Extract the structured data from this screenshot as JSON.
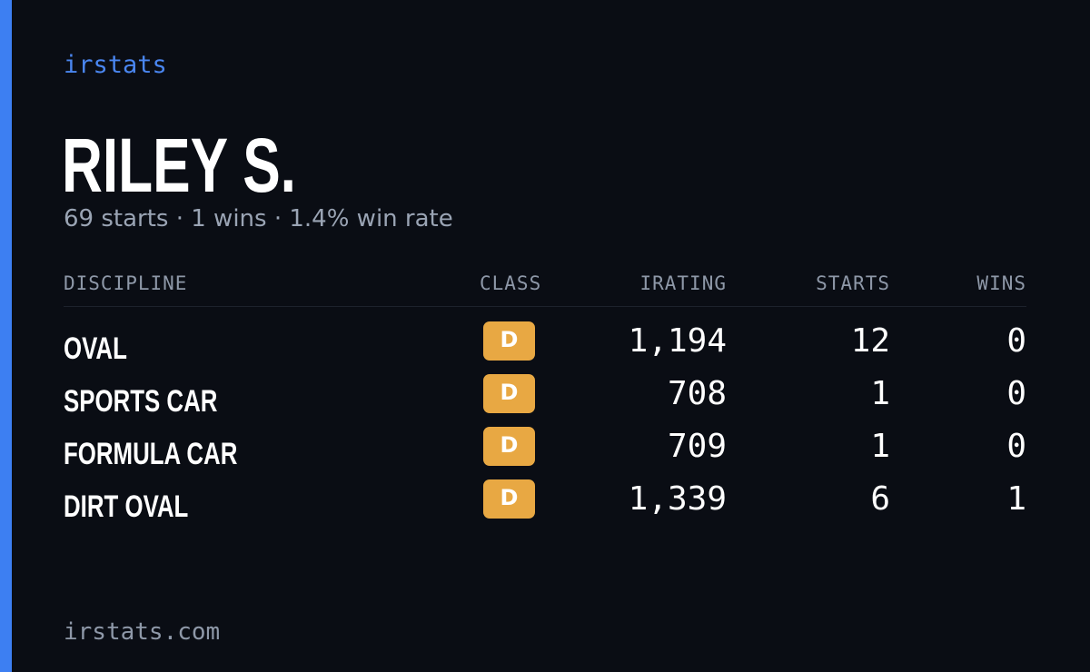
{
  "brand": "irstats",
  "driver": {
    "name": "RILEY S.",
    "summary": "69 starts · 1 wins · 1.4% win rate"
  },
  "table": {
    "headers": {
      "discipline": "DISCIPLINE",
      "class": "CLASS",
      "irating": "IRATING",
      "starts": "STARTS",
      "wins": "WINS"
    },
    "rows": [
      {
        "discipline": "OVAL",
        "class": "D",
        "irating": "1,194",
        "starts": "12",
        "wins": "0"
      },
      {
        "discipline": "SPORTS CAR",
        "class": "D",
        "irating": "708",
        "starts": "1",
        "wins": "0"
      },
      {
        "discipline": "FORMULA CAR",
        "class": "D",
        "irating": "709",
        "starts": "1",
        "wins": "0"
      },
      {
        "discipline": "DIRT OVAL",
        "class": "D",
        "irating": "1,339",
        "starts": "6",
        "wins": "1"
      }
    ]
  },
  "footer": {
    "url": "irstats.com"
  },
  "colors": {
    "background": "#0a0d14",
    "accent": "#3d7ff2",
    "class_d_badge": "#e8a843",
    "muted_text": "#9aa4b4"
  }
}
